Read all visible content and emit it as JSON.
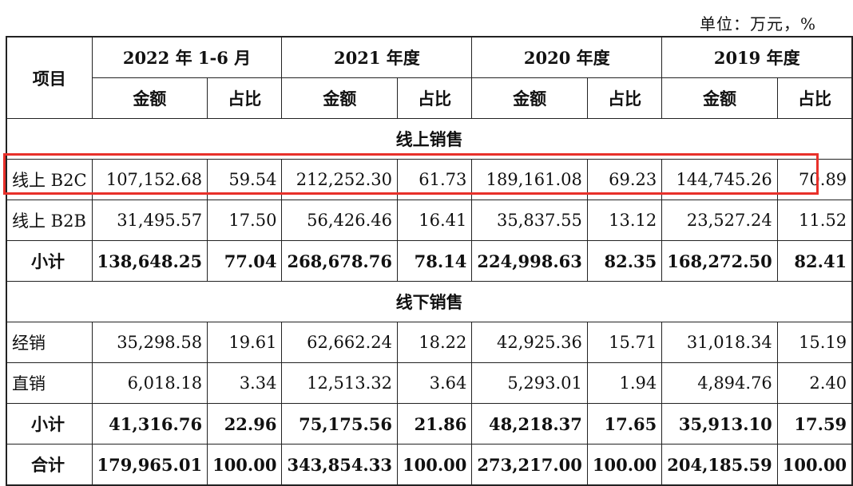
{
  "unit": "单位：万元，%",
  "header": {
    "item": "项目",
    "periods": [
      "2022 年 1-6 月",
      "2021 年度",
      "2020 年度",
      "2019 年度"
    ],
    "amount": "金额",
    "ratio": "占比"
  },
  "sections": {
    "online": "线上销售",
    "offline": "线下销售"
  },
  "rows": {
    "online_b2c": {
      "label": "线上 B2C",
      "values": [
        "107,152.68",
        "59.54",
        "212,252.30",
        "61.73",
        "189,161.08",
        "69.23",
        "144,745.26",
        "70.89"
      ]
    },
    "online_b2b": {
      "label": "线上 B2B",
      "values": [
        "31,495.57",
        "17.50",
        "56,426.46",
        "16.41",
        "35,837.55",
        "13.12",
        "23,527.24",
        "11.52"
      ]
    },
    "online_subtotal": {
      "label": "小计",
      "values": [
        "138,648.25",
        "77.04",
        "268,678.76",
        "78.14",
        "224,998.63",
        "82.35",
        "168,272.50",
        "82.41"
      ]
    },
    "distribution": {
      "label": "经销",
      "values": [
        "35,298.58",
        "19.61",
        "62,662.24",
        "18.22",
        "42,925.36",
        "15.71",
        "31,018.34",
        "15.19"
      ]
    },
    "direct": {
      "label": "直销",
      "values": [
        "6,018.18",
        "3.34",
        "12,513.32",
        "3.64",
        "5,293.01",
        "1.94",
        "4,894.76",
        "2.40"
      ]
    },
    "offline_subtotal": {
      "label": "小计",
      "values": [
        "41,316.76",
        "22.96",
        "75,175.56",
        "21.86",
        "48,218.37",
        "17.65",
        "35,913.10",
        "17.59"
      ]
    },
    "total": {
      "label": "合计",
      "values": [
        "179,965.01",
        "100.00",
        "343,854.33",
        "100.00",
        "273,217.00",
        "100.00",
        "204,185.59",
        "100.00"
      ]
    }
  },
  "highlight_color": "#e8302a"
}
